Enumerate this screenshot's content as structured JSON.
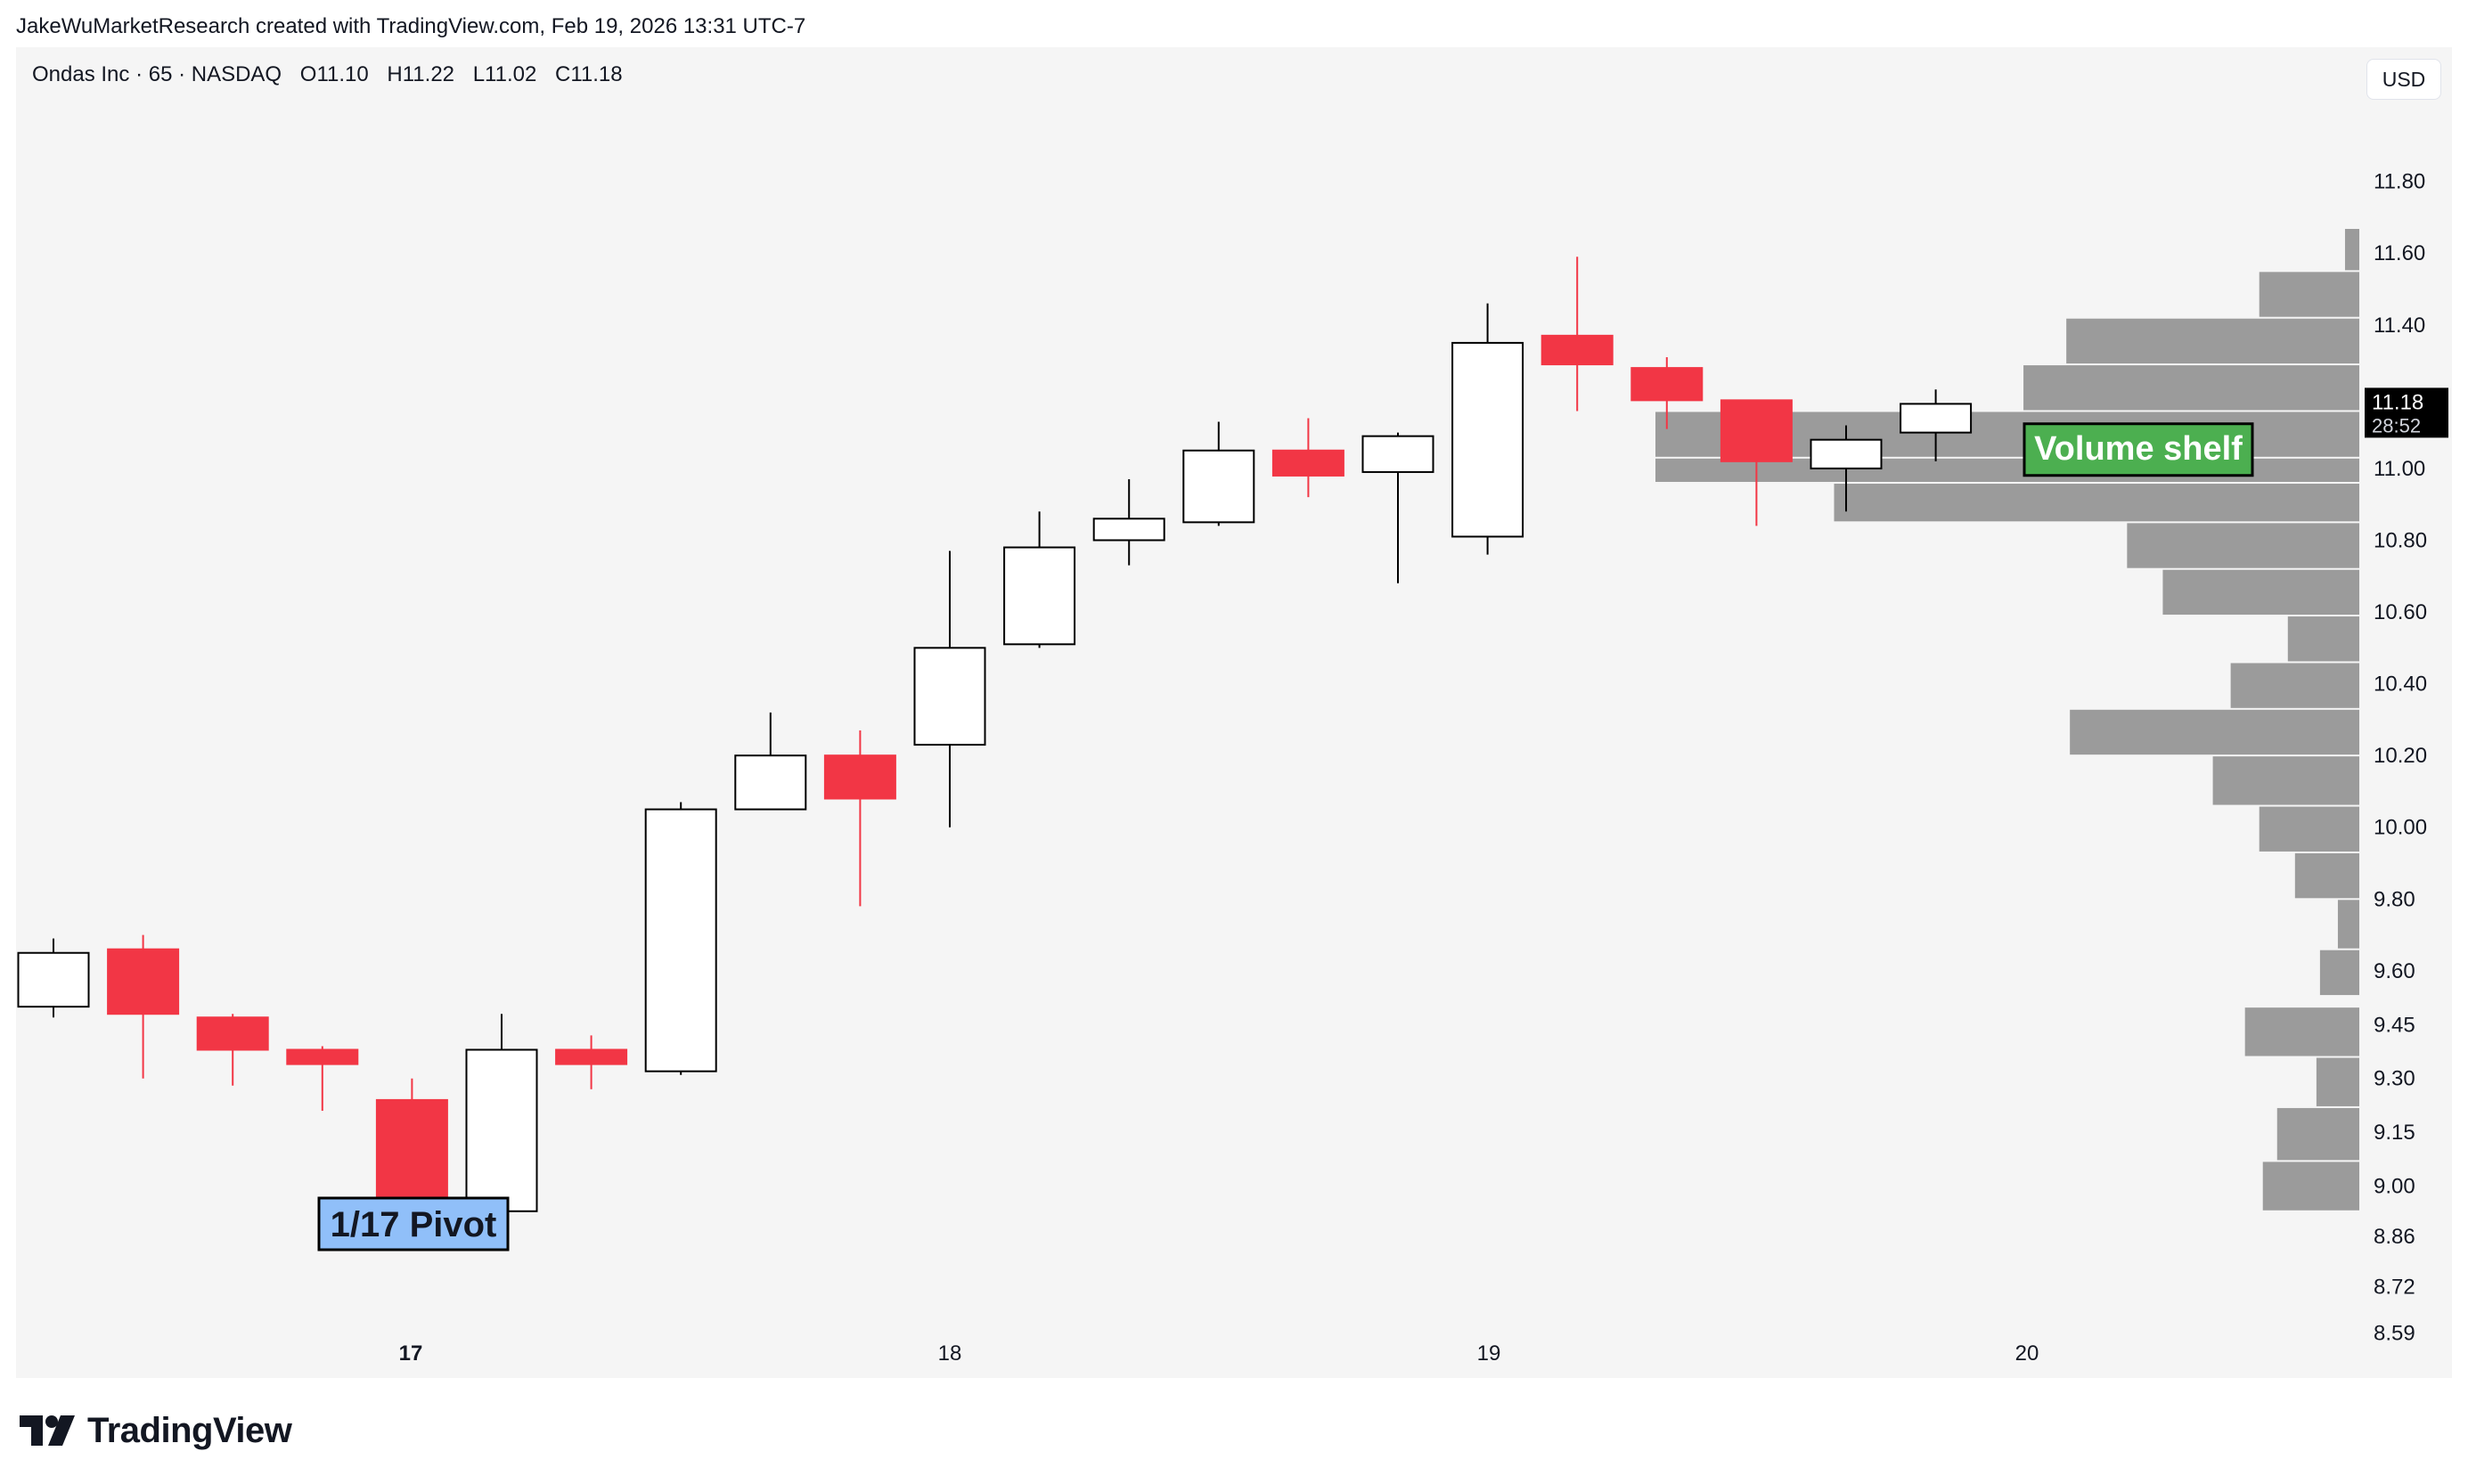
{
  "header": {
    "credit": "JakeWuMarketResearch created with TradingView.com, Feb 19, 2026 13:31 UTC-7"
  },
  "legend": {
    "symbol": "Ondas Inc · 65 · NASDAQ",
    "open": "O11.10",
    "high": "H11.22",
    "low": "L11.02",
    "close": "C11.18"
  },
  "currency_button": "USD",
  "footer": {
    "brand": "TradingView",
    "logo_icon": "tradingview-logo-icon"
  },
  "colors": {
    "background": "#f5f5f5",
    "up_fill": "#ffffff",
    "up_stroke": "#000000",
    "down_fill": "#f23645",
    "volume_profile": "#9b9b9b",
    "price_badge_bg": "#000000",
    "volume_shelf_bg": "#4caf50",
    "pivot_bg": "#90bff9"
  },
  "chart_data": {
    "type": "candlestick",
    "title": "Ondas Inc · 65 · NASDAQ",
    "ylim": [
      8.5,
      12.02
    ],
    "x_ticks": [
      "17",
      "18",
      "19",
      "20"
    ],
    "x_tick_bold": "17",
    "y_ticks": [
      {
        "value": 11.8,
        "label": "11.80"
      },
      {
        "value": 11.6,
        "label": "11.60"
      },
      {
        "value": 11.4,
        "label": "11.40"
      },
      {
        "value": 11.0,
        "label": "11.00"
      },
      {
        "value": 10.8,
        "label": "10.80"
      },
      {
        "value": 10.6,
        "label": "10.60"
      },
      {
        "value": 10.4,
        "label": "10.40"
      },
      {
        "value": 10.2,
        "label": "10.20"
      },
      {
        "value": 10.0,
        "label": "10.00"
      },
      {
        "value": 9.8,
        "label": "9.80"
      },
      {
        "value": 9.6,
        "label": "9.60"
      },
      {
        "value": 9.45,
        "label": "9.45"
      },
      {
        "value": 9.3,
        "label": "9.30"
      },
      {
        "value": 9.15,
        "label": "9.15"
      },
      {
        "value": 9.0,
        "label": "9.00"
      },
      {
        "value": 8.86,
        "label": "8.86"
      },
      {
        "value": 8.72,
        "label": "8.72"
      },
      {
        "value": 8.59,
        "label": "8.59"
      }
    ],
    "candles": [
      {
        "o": 9.5,
        "h": 9.69,
        "l": 9.47,
        "c": 9.65
      },
      {
        "o": 9.66,
        "h": 9.7,
        "l": 9.3,
        "c": 9.48
      },
      {
        "o": 9.47,
        "h": 9.48,
        "l": 9.28,
        "c": 9.38
      },
      {
        "o": 9.38,
        "h": 9.39,
        "l": 9.21,
        "c": 9.34
      },
      {
        "o": 9.24,
        "h": 9.3,
        "l": 8.88,
        "c": 8.92
      },
      {
        "o": 8.93,
        "h": 9.48,
        "l": 8.93,
        "c": 9.38
      },
      {
        "o": 9.38,
        "h": 9.42,
        "l": 9.27,
        "c": 9.34
      },
      {
        "o": 9.32,
        "h": 10.07,
        "l": 9.31,
        "c": 10.05
      },
      {
        "o": 10.05,
        "h": 10.32,
        "l": 10.05,
        "c": 10.2
      },
      {
        "o": 10.2,
        "h": 10.27,
        "l": 9.78,
        "c": 10.08
      },
      {
        "o": 10.23,
        "h": 10.77,
        "l": 10.0,
        "c": 10.5
      },
      {
        "o": 10.51,
        "h": 10.88,
        "l": 10.5,
        "c": 10.78
      },
      {
        "o": 10.8,
        "h": 10.97,
        "l": 10.73,
        "c": 10.86
      },
      {
        "o": 10.85,
        "h": 11.13,
        "l": 10.84,
        "c": 11.05
      },
      {
        "o": 11.05,
        "h": 11.14,
        "l": 10.92,
        "c": 10.98
      },
      {
        "o": 10.99,
        "h": 11.1,
        "l": 10.68,
        "c": 11.09
      },
      {
        "o": 10.81,
        "h": 11.46,
        "l": 10.76,
        "c": 11.35
      },
      {
        "o": 11.37,
        "h": 11.59,
        "l": 11.16,
        "c": 11.29
      },
      {
        "o": 11.28,
        "h": 11.31,
        "l": 11.11,
        "c": 11.19
      },
      {
        "o": 11.19,
        "h": 11.19,
        "l": 10.84,
        "c": 11.02
      },
      {
        "o": 11.0,
        "h": 11.12,
        "l": 10.88,
        "c": 11.08
      },
      {
        "o": 11.1,
        "h": 11.22,
        "l": 11.02,
        "c": 11.18
      }
    ],
    "volume_profile": [
      {
        "low": 11.55,
        "high": 11.67,
        "volume": 4
      },
      {
        "low": 11.42,
        "high": 11.55,
        "volume": 28
      },
      {
        "low": 11.29,
        "high": 11.42,
        "volume": 82
      },
      {
        "low": 11.16,
        "high": 11.29,
        "volume": 94
      },
      {
        "low": 11.03,
        "high": 11.16,
        "volume": 197
      },
      {
        "low": 10.96,
        "high": 11.03,
        "volume": 197
      },
      {
        "low": 10.85,
        "high": 10.96,
        "volume": 147
      },
      {
        "low": 10.72,
        "high": 10.85,
        "volume": 65
      },
      {
        "low": 10.59,
        "high": 10.72,
        "volume": 55
      },
      {
        "low": 10.46,
        "high": 10.59,
        "volume": 20
      },
      {
        "low": 10.33,
        "high": 10.46,
        "volume": 36
      },
      {
        "low": 10.2,
        "high": 10.33,
        "volume": 81
      },
      {
        "low": 10.06,
        "high": 10.2,
        "volume": 41
      },
      {
        "low": 9.93,
        "high": 10.06,
        "volume": 28
      },
      {
        "low": 9.8,
        "high": 9.93,
        "volume": 18
      },
      {
        "low": 9.66,
        "high": 9.8,
        "volume": 6
      },
      {
        "low": 9.53,
        "high": 9.66,
        "volume": 11
      },
      {
        "low": 9.36,
        "high": 9.5,
        "volume": 32
      },
      {
        "low": 9.22,
        "high": 9.36,
        "volume": 12
      },
      {
        "low": 9.07,
        "high": 9.22,
        "volume": 23
      },
      {
        "low": 8.93,
        "high": 9.07,
        "volume": 27
      }
    ],
    "last_price": {
      "value": 11.18,
      "label": "11.18",
      "countdown": "28:52"
    },
    "annotations": [
      {
        "text": "Volume shelf",
        "price": 11.05
      },
      {
        "text": "1/17 Pivot",
        "price": 8.98
      }
    ]
  }
}
